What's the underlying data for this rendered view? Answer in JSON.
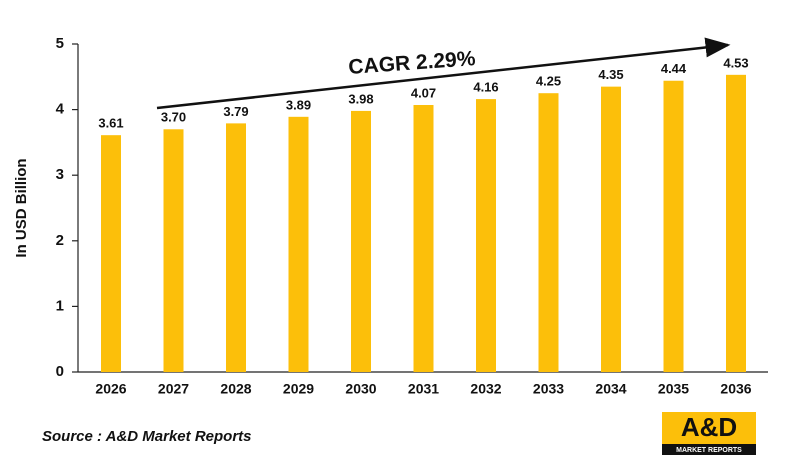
{
  "chart_data": {
    "type": "bar",
    "annotation": "CAGR 2.29%",
    "y_axis_label": "In USD Billion",
    "source": "Source : A&D Market Reports",
    "logo": {
      "title": "A&D",
      "subtitle": "MARKET REPORTS"
    },
    "categories": [
      "2026",
      "2027",
      "2028",
      "2029",
      "2030",
      "2031",
      "2032",
      "2033",
      "2034",
      "2035",
      "2036"
    ],
    "values": [
      3.61,
      3.7,
      3.79,
      3.89,
      3.98,
      4.07,
      4.16,
      4.25,
      4.35,
      4.44,
      4.53
    ],
    "value_labels": [
      "3.61",
      "3.70",
      "3.79",
      "3.89",
      "3.98",
      "4.07",
      "4.16",
      "4.25",
      "4.35",
      "4.44",
      "4.53"
    ],
    "color": "#fcbf0a",
    "ylim": [
      0,
      5
    ],
    "yticks": [
      0,
      1,
      2,
      3,
      4,
      5
    ],
    "grid": false
  }
}
